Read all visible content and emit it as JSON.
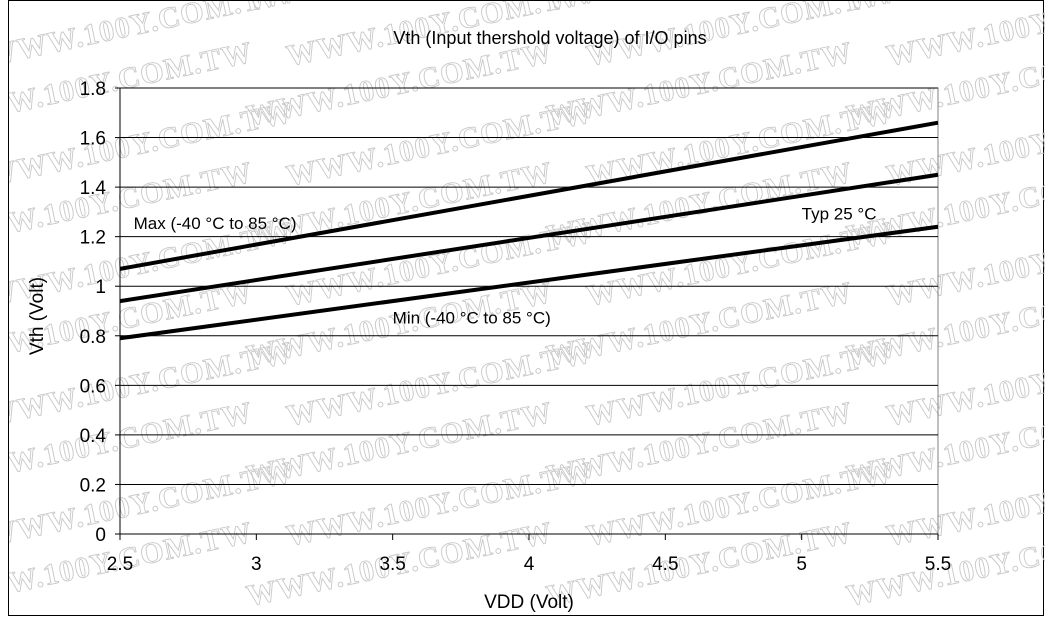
{
  "watermark_text": "WWW.100Y.COM.TW",
  "chart_data": {
    "type": "line",
    "title": "Vth (Input thershold voltage) of I/O pins",
    "xlabel": "VDD (Volt)",
    "ylabel": "Vth (Volt)",
    "xlim": [
      2.5,
      5.5
    ],
    "ylim": [
      0,
      1.8
    ],
    "x_ticks": [
      "2.5",
      "3",
      "3.5",
      "4",
      "4.5",
      "5",
      "5.5"
    ],
    "y_ticks": [
      "0",
      "0.2",
      "0.4",
      "0.6",
      "0.8",
      "1",
      "1.2",
      "1.4",
      "1.6",
      "1.8"
    ],
    "grid": "horizontal",
    "x": [
      2.5,
      5.5
    ],
    "series": [
      {
        "name": "Max (-40 °C to 85 °C)",
        "values": [
          1.07,
          1.66
        ]
      },
      {
        "name": "Typ 25 °C",
        "values": [
          0.94,
          1.45
        ]
      },
      {
        "name": "Min (-40 °C to 85 °C)",
        "values": [
          0.79,
          1.24
        ]
      }
    ],
    "annotations": [
      {
        "text": "Max (-40 °C to 85 °C)",
        "x": 2.55,
        "y": 1.23
      },
      {
        "text": "Typ 25 °C",
        "x": 5.0,
        "y": 1.27
      },
      {
        "text": "Min (-40 °C to 85 °C)",
        "x": 3.5,
        "y": 0.85
      }
    ],
    "line_color": "#000000"
  }
}
